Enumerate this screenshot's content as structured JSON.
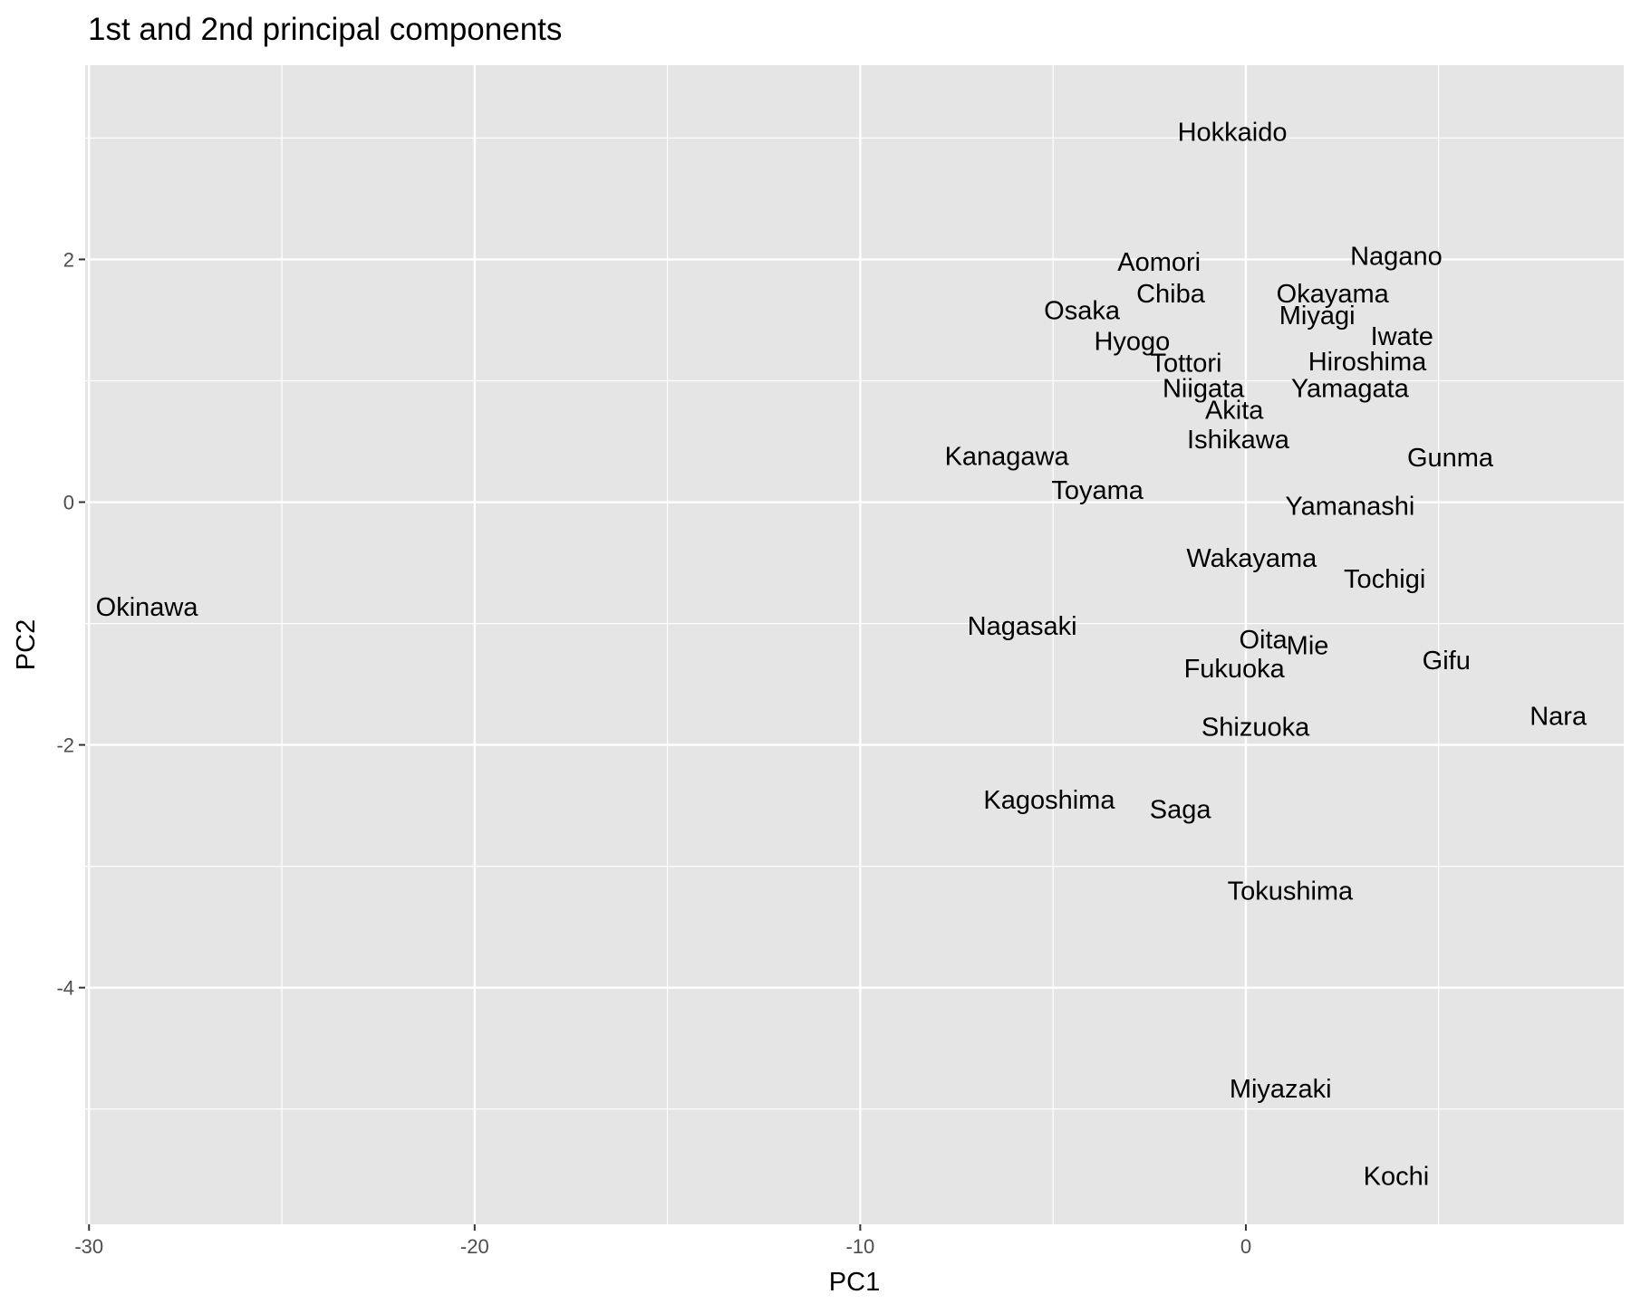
{
  "chart_data": {
    "type": "scatter",
    "title": "1st and 2nd principal components",
    "xlabel": "PC1",
    "ylabel": "PC2",
    "xlim": [
      -30.1,
      9.8
    ],
    "ylim": [
      -5.95,
      3.6
    ],
    "x_ticks": [
      -30,
      -20,
      -10,
      0
    ],
    "x_tick_labels": [
      "-30",
      "-20",
      "-10",
      "0"
    ],
    "y_ticks": [
      -4,
      -2,
      0,
      2
    ],
    "y_tick_labels": [
      "-4",
      "-2",
      "0",
      "2"
    ],
    "x_minor_ticks": [
      -25,
      -15,
      -5,
      5
    ],
    "y_minor_ticks": [
      -5,
      -3,
      -1,
      1,
      3
    ],
    "grid": true,
    "marker": "text-label",
    "panel_color": "#e5e5e5",
    "grid_color": "#ffffff",
    "points": [
      {
        "label": "Hokkaido",
        "x": -0.35,
        "y": 3.05
      },
      {
        "label": "Aomori",
        "x": -2.25,
        "y": 1.98
      },
      {
        "label": "Nagano",
        "x": 3.9,
        "y": 2.03
      },
      {
        "label": "Chiba",
        "x": -1.95,
        "y": 1.72
      },
      {
        "label": "Okayama",
        "x": 2.25,
        "y": 1.72
      },
      {
        "label": "Osaka",
        "x": -4.25,
        "y": 1.58
      },
      {
        "label": "Miyagi",
        "x": 1.85,
        "y": 1.54
      },
      {
        "label": "Iwate",
        "x": 4.05,
        "y": 1.37
      },
      {
        "label": "Hyogo",
        "x": -2.95,
        "y": 1.33
      },
      {
        "label": "Tottori",
        "x": -1.55,
        "y": 1.15
      },
      {
        "label": "Hiroshima",
        "x": 3.15,
        "y": 1.16
      },
      {
        "label": "Niigata",
        "x": -1.1,
        "y": 0.94
      },
      {
        "label": "Yamagata",
        "x": 2.7,
        "y": 0.94
      },
      {
        "label": "Akita",
        "x": -0.3,
        "y": 0.76
      },
      {
        "label": "Ishikawa",
        "x": -0.2,
        "y": 0.52
      },
      {
        "label": "Kanagawa",
        "x": -6.2,
        "y": 0.38
      },
      {
        "label": "Gunma",
        "x": 5.3,
        "y": 0.37
      },
      {
        "label": "Toyama",
        "x": -3.85,
        "y": 0.1
      },
      {
        "label": "Yamanashi",
        "x": 2.7,
        "y": -0.03
      },
      {
        "label": "Wakayama",
        "x": 0.15,
        "y": -0.46
      },
      {
        "label": "Tochigi",
        "x": 3.6,
        "y": -0.63
      },
      {
        "label": "Okinawa",
        "x": -28.5,
        "y": -0.86
      },
      {
        "label": "Nagasaki",
        "x": -5.8,
        "y": -1.02
      },
      {
        "label": "Oita",
        "x": 0.45,
        "y": -1.13
      },
      {
        "label": "Mie",
        "x": 1.6,
        "y": -1.18
      },
      {
        "label": "Gifu",
        "x": 5.2,
        "y": -1.3
      },
      {
        "label": "Fukuoka",
        "x": -0.3,
        "y": -1.37
      },
      {
        "label": "Nara",
        "x": 8.1,
        "y": -1.76
      },
      {
        "label": "Shizuoka",
        "x": 0.25,
        "y": -1.85
      },
      {
        "label": "Kagoshima",
        "x": -5.1,
        "y": -2.45
      },
      {
        "label": "Saga",
        "x": -1.7,
        "y": -2.53
      },
      {
        "label": "Tokushima",
        "x": 1.15,
        "y": -3.2
      },
      {
        "label": "Miyazaki",
        "x": 0.9,
        "y": -4.83
      },
      {
        "label": "Kochi",
        "x": 3.9,
        "y": -5.55
      }
    ]
  }
}
